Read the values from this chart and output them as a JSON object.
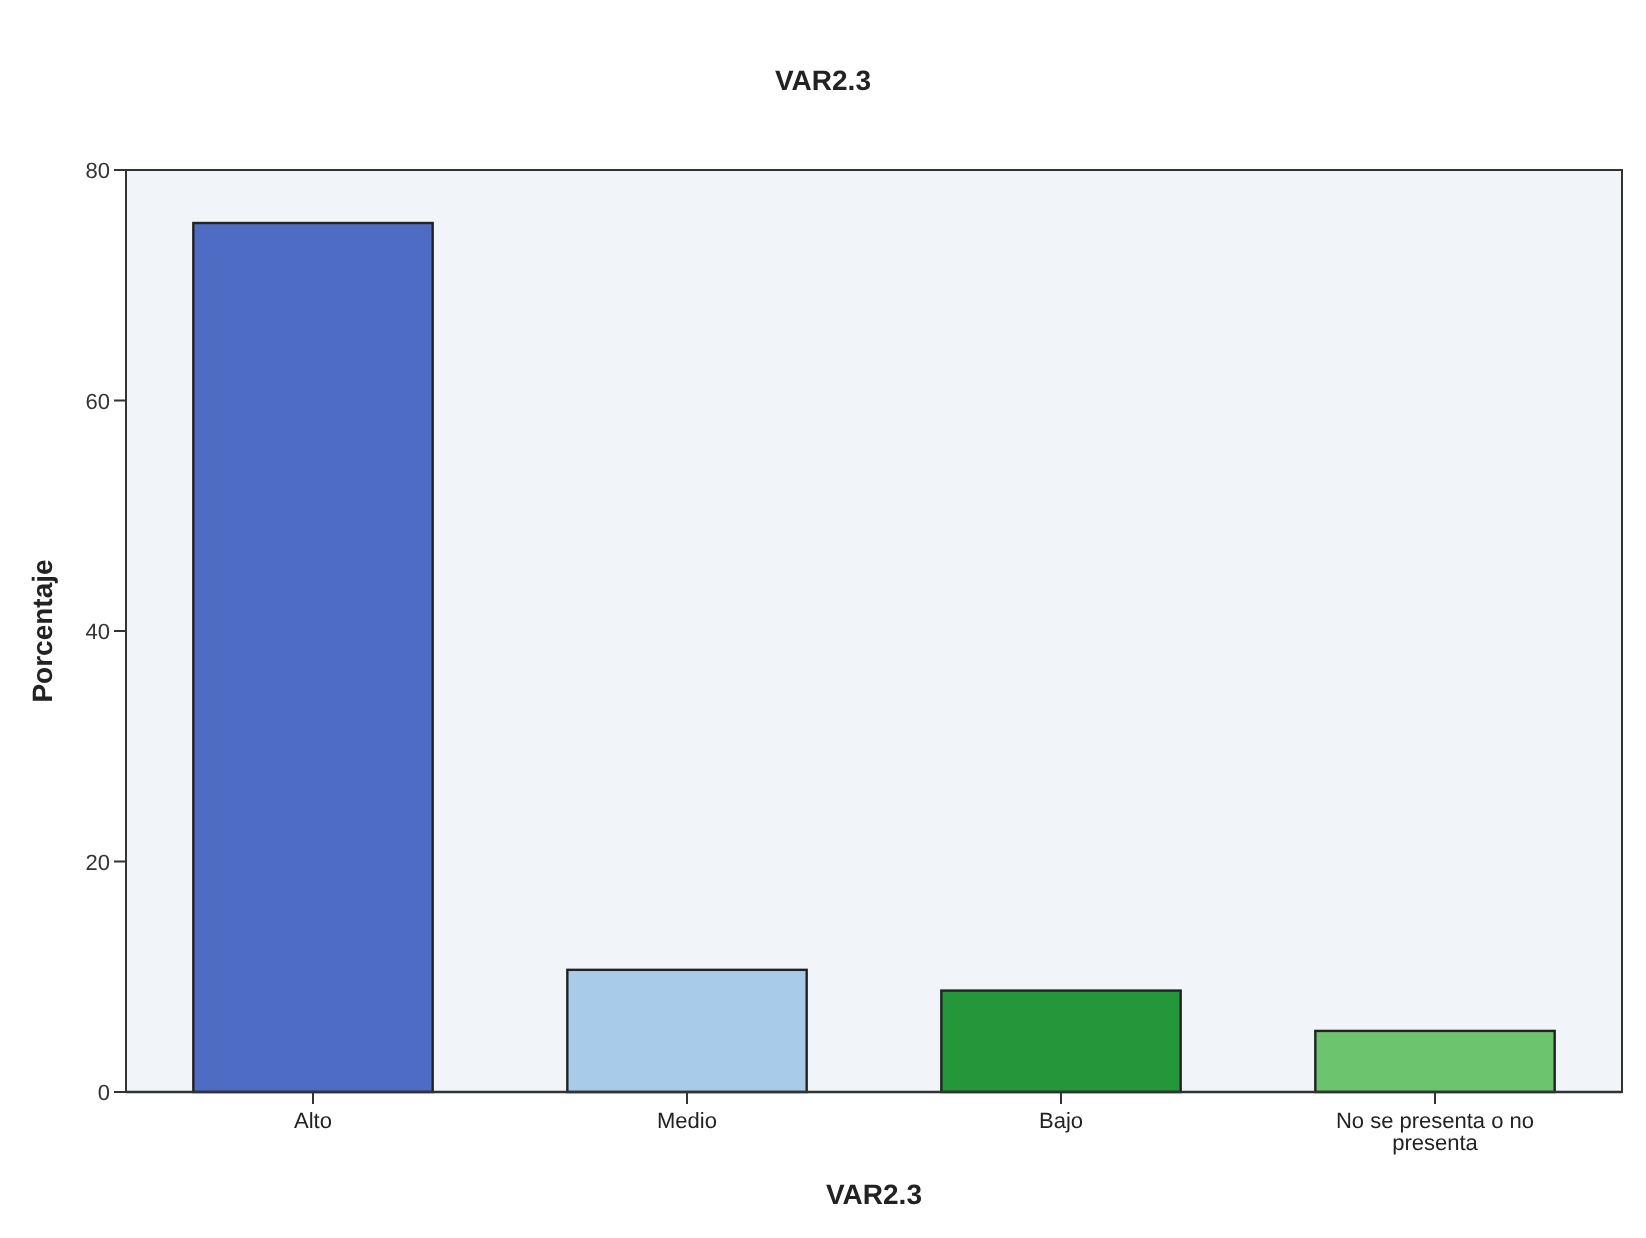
{
  "chart_data": {
    "type": "bar",
    "title": "VAR2.3",
    "xlabel": "VAR2.3",
    "ylabel": "Porcentaje",
    "categories": [
      "Alto",
      "Medio",
      "Bajo",
      "No se presenta o no presenta"
    ],
    "values": [
      75.4,
      10.6,
      8.8,
      5.3
    ],
    "colors": [
      "#4f6cc4",
      "#a8cbea",
      "#23973a",
      "#6cc46f"
    ],
    "ylim": [
      0,
      80
    ],
    "yticks": [
      0,
      20,
      40,
      60,
      80
    ],
    "grid": false
  }
}
